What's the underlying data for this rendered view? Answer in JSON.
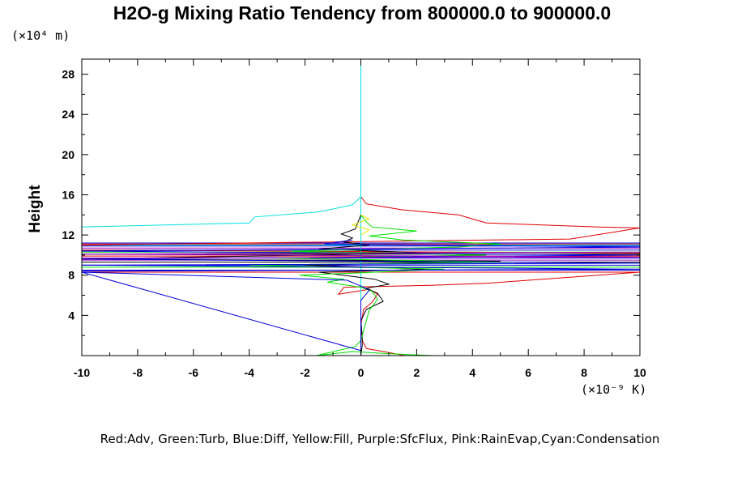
{
  "chart_data": {
    "type": "line",
    "title": "H2O-g Mixing Ratio Tendency from 800000.0 to 900000.0",
    "xlabel_unit": "(×10⁻⁹ K)",
    "ylabel": "Height",
    "ylabel_unit": "(×10⁴ m)",
    "xlim": [
      -10,
      10
    ],
    "ylim": [
      0,
      29.5
    ],
    "x_ticks": [
      -10,
      -8,
      -6,
      -4,
      -2,
      0,
      2,
      4,
      6,
      8,
      10
    ],
    "y_ticks": [
      4,
      8,
      12,
      16,
      20,
      24,
      28
    ],
    "legend_text": "Red:Adv, Green:Turb, Blue:Diff, Yellow:Fill, Purple:SfcFlux, Pink:RainEvap,Cyan:Condensation",
    "grid": false,
    "colors": {
      "red": "#e00000",
      "green": "#00e000",
      "blue": "#0000e0",
      "yellow": "#e6e600",
      "purple": "#a000c0",
      "pink": "#ff80c0",
      "cyan": "#00e0e0",
      "black": "#000000"
    },
    "series": [
      {
        "color": "red",
        "points": [
          [
            1.6,
            0.0
          ],
          [
            0.8,
            0.4
          ],
          [
            0.2,
            0.7
          ],
          [
            0.05,
            1.5
          ],
          [
            0.0,
            3.0
          ],
          [
            0.1,
            4.6
          ],
          [
            0.4,
            5.3
          ],
          [
            0.6,
            6.1
          ],
          [
            0.3,
            6.6
          ],
          [
            -0.8,
            6.1
          ],
          [
            -0.6,
            6.8
          ],
          [
            2.5,
            7.0
          ],
          [
            4.5,
            7.2
          ],
          [
            6.5,
            7.6
          ],
          [
            9.0,
            8.1
          ],
          [
            10,
            8.3
          ],
          [
            10,
            10.2
          ],
          [
            -10,
            10.5
          ],
          [
            -10,
            11.0
          ],
          [
            7.5,
            11.6
          ],
          [
            10,
            12.7
          ]
        ],
        "points_b": [
          [
            10,
            12.7
          ],
          [
            8.5,
            12.8
          ],
          [
            6.5,
            13.0
          ],
          [
            4.5,
            13.2
          ],
          [
            3.5,
            14.0
          ],
          [
            1.5,
            14.5
          ],
          [
            0.2,
            15.1
          ],
          [
            0.0,
            15.8
          ]
        ]
      },
      {
        "color": "cyan",
        "points": [
          [
            -10,
            12.8
          ],
          [
            -4,
            13.2
          ],
          [
            -3.8,
            13.8
          ],
          [
            -1.5,
            14.3
          ],
          [
            -0.3,
            15.0
          ],
          [
            0.0,
            15.8
          ]
        ],
        "points_b": [
          [
            0,
            0.0
          ],
          [
            0,
            29.5
          ]
        ]
      },
      {
        "color": "black",
        "points": [
          [
            0.0,
            0.0
          ],
          [
            0.05,
            1.0
          ],
          [
            0.05,
            2.0
          ],
          [
            0.0,
            3.5
          ],
          [
            0.2,
            4.6
          ],
          [
            0.8,
            5.4
          ],
          [
            0.6,
            6.2
          ],
          [
            0.2,
            6.7
          ],
          [
            1.0,
            7.1
          ],
          [
            0.5,
            7.6
          ],
          [
            -1.5,
            8.3
          ],
          [
            2.5,
            8.6
          ],
          [
            -2.0,
            9.0
          ],
          [
            5.0,
            9.4
          ],
          [
            -10,
            9.6
          ],
          [
            -4.0,
            9.9
          ],
          [
            2.5,
            10.2
          ],
          [
            -1.5,
            10.6
          ],
          [
            0.3,
            11.0
          ],
          [
            -0.6,
            11.3
          ],
          [
            -0.3,
            11.7
          ],
          [
            -0.7,
            12.1
          ],
          [
            -0.2,
            12.6
          ],
          [
            -0.1,
            13.3
          ],
          [
            0.0,
            14.0
          ]
        ]
      },
      {
        "color": "green",
        "points": [
          [
            2.6,
            0.0
          ],
          [
            0.9,
            0.2
          ],
          [
            -0.3,
            0.4
          ],
          [
            -1.6,
            0.0
          ],
          [
            -0.2,
            0.9
          ],
          [
            0.0,
            1.5
          ],
          [
            0.3,
            4.5
          ],
          [
            0.6,
            5.6
          ],
          [
            0.4,
            6.4
          ],
          [
            0.0,
            6.8
          ],
          [
            -1.2,
            7.3
          ],
          [
            -0.6,
            7.6
          ],
          [
            -2.2,
            8.0
          ],
          [
            -0.3,
            8.2
          ],
          [
            3.0,
            8.6
          ],
          [
            -4.0,
            9.0
          ],
          [
            5.5,
            9.3
          ],
          [
            -3.0,
            9.7
          ],
          [
            4.5,
            10.0
          ],
          [
            -2.5,
            10.4
          ],
          [
            3.5,
            10.8
          ],
          [
            5.0,
            11.1
          ],
          [
            1.5,
            11.5
          ],
          [
            0.3,
            11.9
          ],
          [
            2.0,
            12.4
          ],
          [
            0.4,
            12.8
          ],
          [
            0.2,
            13.3
          ],
          [
            0.0,
            14.0
          ]
        ]
      },
      {
        "color": "blue",
        "points": [
          [
            0.0,
            0.0
          ],
          [
            0.0,
            0.5
          ],
          [
            -10,
            8.3
          ],
          [
            -0.5,
            7.5
          ],
          [
            0.1,
            6.8
          ],
          [
            0.3,
            6.5
          ],
          [
            0.0,
            5.5
          ],
          [
            0.0,
            2.0
          ],
          [
            0.0,
            0.5
          ]
        ],
        "points_b": [
          [
            -10,
            8.4
          ],
          [
            10,
            8.6
          ],
          [
            -10,
            9.0
          ],
          [
            10,
            9.2
          ],
          [
            -10,
            9.6
          ],
          [
            10,
            10.0
          ],
          [
            -10,
            10.4
          ],
          [
            10,
            10.8
          ],
          [
            -1.3,
            11.1
          ],
          [
            -0.3,
            11.5
          ]
        ]
      },
      {
        "color": "yellow",
        "points": [
          [
            0.0,
            12.0
          ],
          [
            0.3,
            12.5
          ],
          [
            -0.3,
            13.0
          ],
          [
            0.3,
            13.6
          ],
          [
            0.0,
            14.0
          ]
        ]
      },
      {
        "color": "pink",
        "points": [
          [
            -4.0,
            0.0
          ],
          [
            -3.4,
            0.0
          ],
          [
            -3.2,
            0.0
          ],
          [
            -2.8,
            0.0
          ]
        ]
      },
      {
        "color": "purple",
        "points": [
          [
            -10,
            9.7
          ],
          [
            10,
            9.8
          ],
          [
            -10,
            10.1
          ],
          [
            10,
            10.3
          ]
        ]
      }
    ],
    "band_lines": [
      {
        "color": "red",
        "y": 8.3
      },
      {
        "color": "blue",
        "y": 8.5
      },
      {
        "color": "green",
        "y": 8.8
      },
      {
        "color": "blue",
        "y": 9.0
      },
      {
        "color": "black",
        "y": 9.3
      },
      {
        "color": "purple",
        "y": 9.5
      },
      {
        "color": "blue",
        "y": 9.7
      },
      {
        "color": "red",
        "y": 9.9
      },
      {
        "color": "black",
        "y": 10.1
      },
      {
        "color": "green",
        "y": 10.3
      },
      {
        "color": "blue",
        "y": 10.5
      },
      {
        "color": "purple",
        "y": 10.7
      },
      {
        "color": "blue",
        "y": 10.9
      },
      {
        "color": "red",
        "y": 11.1
      },
      {
        "color": "cyan",
        "y": 11.0
      },
      {
        "color": "blue",
        "y": 11.2
      }
    ]
  }
}
